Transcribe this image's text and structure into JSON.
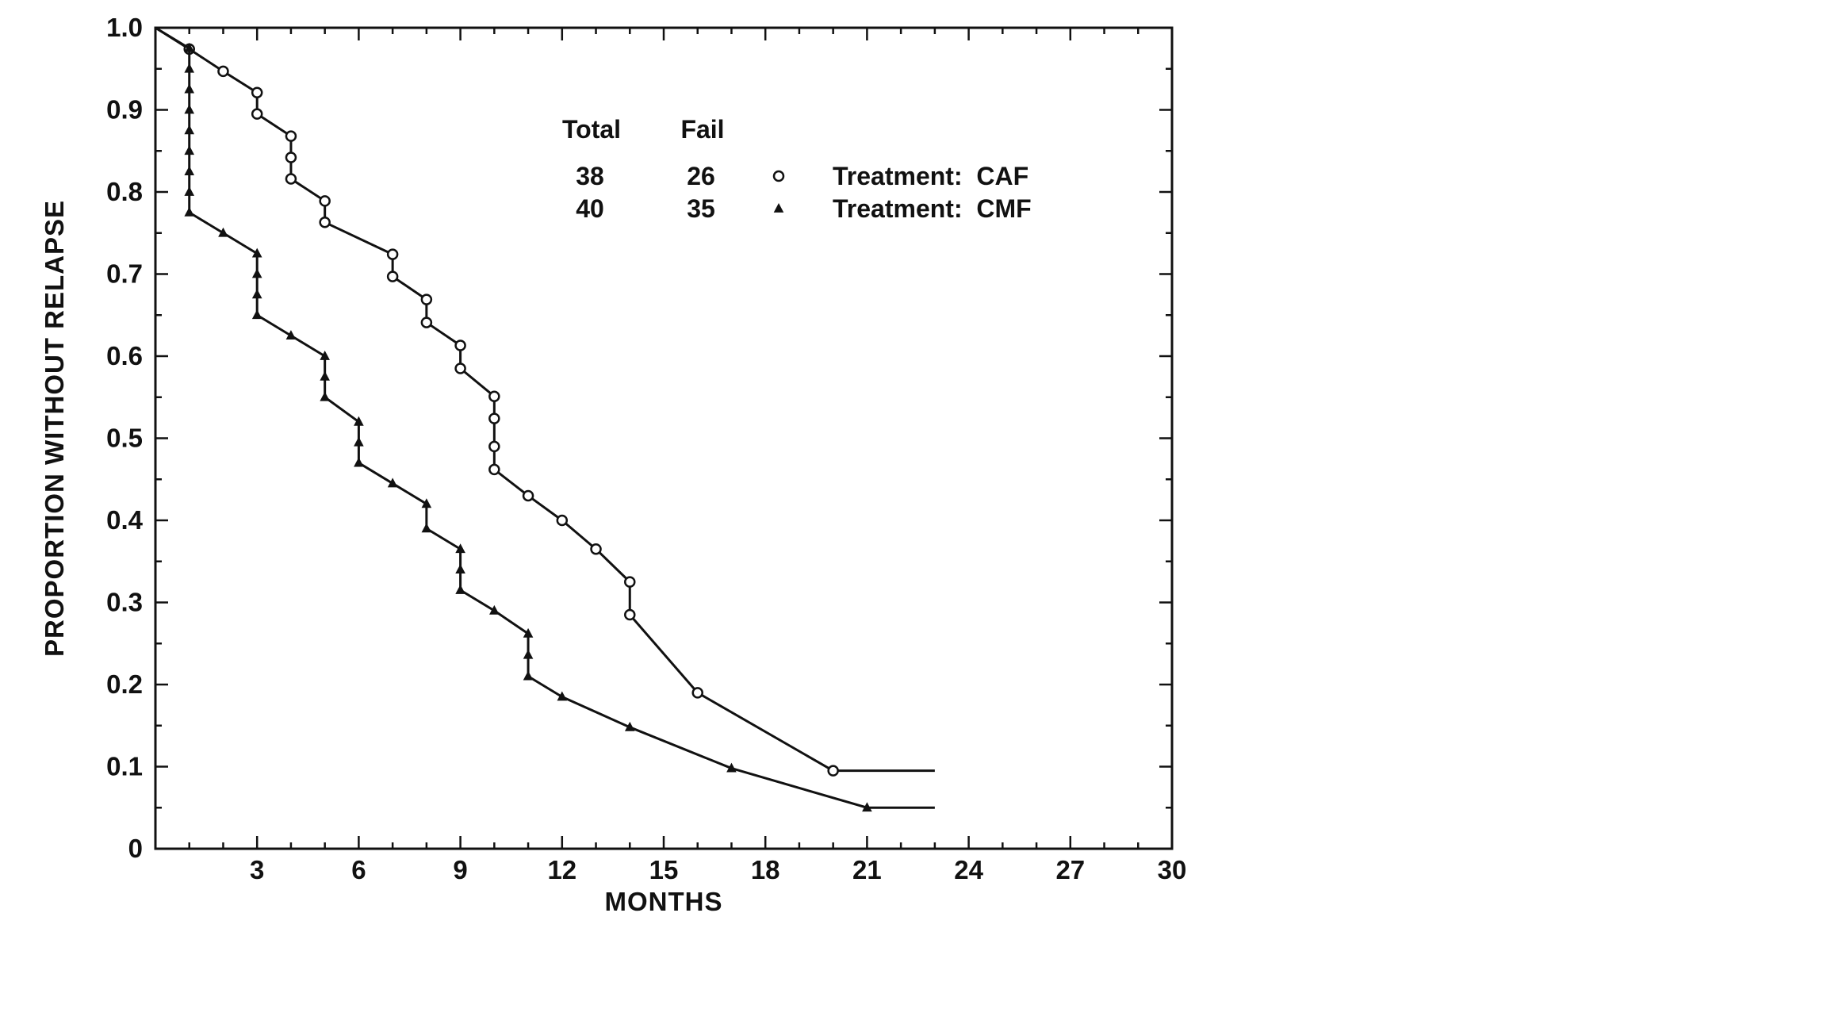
{
  "chart_data": {
    "type": "line",
    "title": "",
    "xlabel": "MONTHS",
    "ylabel": "PROPORTION  WITHOUT  RELAPSE",
    "xlim": [
      0,
      30
    ],
    "ylim": [
      0,
      1
    ],
    "x_ticks": [
      "3",
      "6",
      "9",
      "12",
      "15",
      "18",
      "21",
      "24",
      "27",
      "30"
    ],
    "y_ticks": [
      "0",
      "0.1",
      "0.2",
      "0.3",
      "0.4",
      "0.5",
      "0.6",
      "0.7",
      "0.8",
      "0.9",
      "1.0"
    ],
    "grid": false,
    "legend": {
      "placement": "top-center",
      "header_total": "Total",
      "header_fail": "Fail",
      "rows": [
        {
          "total": "38",
          "fail": "26",
          "label": "Treatment:  CAF"
        },
        {
          "total": "40",
          "fail": "35",
          "label": "Treatment:  CMF"
        }
      ]
    },
    "series": [
      {
        "name": "Treatment:  CAF",
        "marker": "open-circle",
        "events": [
          {
            "x": 0,
            "y": 1.0
          },
          {
            "x": 1,
            "y": 0.974
          },
          {
            "x": 2,
            "y": 0.947
          },
          {
            "x": 3,
            "y": 0.921
          },
          {
            "x": 3,
            "y": 0.895
          },
          {
            "x": 4,
            "y": 0.868
          },
          {
            "x": 4,
            "y": 0.842
          },
          {
            "x": 4,
            "y": 0.816
          },
          {
            "x": 5,
            "y": 0.789
          },
          {
            "x": 5,
            "y": 0.763
          },
          {
            "x": 7,
            "y": 0.724
          },
          {
            "x": 7,
            "y": 0.697
          },
          {
            "x": 8,
            "y": 0.669
          },
          {
            "x": 8,
            "y": 0.641
          },
          {
            "x": 9,
            "y": 0.613
          },
          {
            "x": 9,
            "y": 0.585
          },
          {
            "x": 10,
            "y": 0.551
          },
          {
            "x": 10,
            "y": 0.524
          },
          {
            "x": 10,
            "y": 0.49
          },
          {
            "x": 10,
            "y": 0.462
          },
          {
            "x": 11,
            "y": 0.43
          },
          {
            "x": 12,
            "y": 0.4
          },
          {
            "x": 13,
            "y": 0.365
          },
          {
            "x": 14,
            "y": 0.325
          },
          {
            "x": 14,
            "y": 0.285
          },
          {
            "x": 16,
            "y": 0.19
          },
          {
            "x": 20,
            "y": 0.095
          }
        ],
        "tail_to": 23
      },
      {
        "name": "Treatment:  CMF",
        "marker": "filled-triangle",
        "events": [
          {
            "x": 0,
            "y": 1.0
          },
          {
            "x": 1,
            "y": 0.975
          },
          {
            "x": 1,
            "y": 0.95
          },
          {
            "x": 1,
            "y": 0.925
          },
          {
            "x": 1,
            "y": 0.9
          },
          {
            "x": 1,
            "y": 0.875
          },
          {
            "x": 1,
            "y": 0.85
          },
          {
            "x": 1,
            "y": 0.825
          },
          {
            "x": 1,
            "y": 0.8
          },
          {
            "x": 1,
            "y": 0.775
          },
          {
            "x": 2,
            "y": 0.75
          },
          {
            "x": 3,
            "y": 0.725
          },
          {
            "x": 3,
            "y": 0.7
          },
          {
            "x": 3,
            "y": 0.675
          },
          {
            "x": 3,
            "y": 0.65
          },
          {
            "x": 4,
            "y": 0.625
          },
          {
            "x": 5,
            "y": 0.6
          },
          {
            "x": 5,
            "y": 0.575
          },
          {
            "x": 5,
            "y": 0.55
          },
          {
            "x": 6,
            "y": 0.52
          },
          {
            "x": 6,
            "y": 0.495
          },
          {
            "x": 6,
            "y": 0.47
          },
          {
            "x": 7,
            "y": 0.445
          },
          {
            "x": 8,
            "y": 0.42
          },
          {
            "x": 8,
            "y": 0.39
          },
          {
            "x": 9,
            "y": 0.365
          },
          {
            "x": 9,
            "y": 0.34
          },
          {
            "x": 9,
            "y": 0.315
          },
          {
            "x": 10,
            "y": 0.29
          },
          {
            "x": 11,
            "y": 0.262
          },
          {
            "x": 11,
            "y": 0.236
          },
          {
            "x": 11,
            "y": 0.21
          },
          {
            "x": 12,
            "y": 0.185
          },
          {
            "x": 14,
            "y": 0.148
          },
          {
            "x": 17,
            "y": 0.098
          },
          {
            "x": 21,
            "y": 0.05
          }
        ],
        "tail_to": 23
      }
    ]
  }
}
